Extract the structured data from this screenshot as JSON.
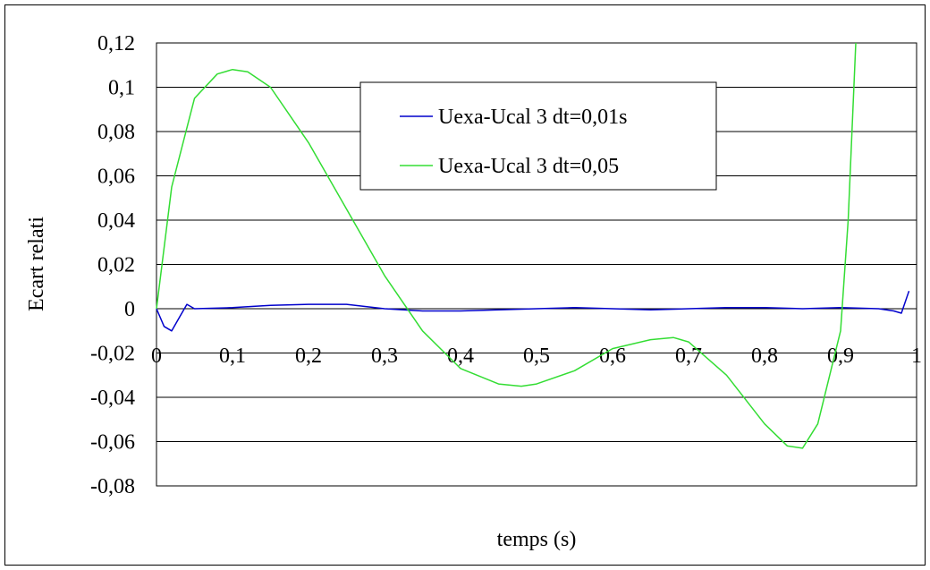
{
  "chart_data": {
    "type": "line",
    "title": "",
    "xlabel": "temps (s)",
    "ylabel": "Ecart relati",
    "xlim": [
      0,
      1
    ],
    "ylim": [
      -0.08,
      0.12
    ],
    "x_ticks": [
      0,
      0.1,
      0.2,
      0.3,
      0.4,
      0.5,
      0.6,
      0.7,
      0.8,
      0.9,
      1
    ],
    "x_tick_labels": [
      "0",
      "0,1",
      "0,2",
      "0,3",
      "0,4",
      "0,5",
      "0,6",
      "0,7",
      "0,8",
      "0,9",
      "1"
    ],
    "y_ticks": [
      0.12,
      0.1,
      0.08,
      0.06,
      0.04,
      0.02,
      0,
      -0.02,
      -0.04,
      -0.06,
      -0.08
    ],
    "y_tick_labels": [
      "0,12",
      "0,1",
      "0,08",
      "0,06",
      "0,04",
      "0,02",
      "0",
      "-0,02",
      "-0,04",
      "-0,06",
      "-0,08"
    ],
    "grid": "horizontal",
    "legend_position": "top-center",
    "series": [
      {
        "name": "Uexa-Ucal 3 dt=0,01s",
        "color": "#0000cc",
        "x": [
          0,
          0.01,
          0.02,
          0.03,
          0.04,
          0.05,
          0.1,
          0.15,
          0.2,
          0.25,
          0.3,
          0.35,
          0.4,
          0.45,
          0.5,
          0.55,
          0.6,
          0.65,
          0.7,
          0.75,
          0.8,
          0.85,
          0.9,
          0.95,
          0.97,
          0.98,
          0.99
        ],
        "values": [
          0,
          -0.008,
          -0.01,
          -0.004,
          0.002,
          0,
          0.0005,
          0.0015,
          0.002,
          0.002,
          0.0,
          -0.001,
          -0.001,
          -0.0005,
          0,
          0.0005,
          0,
          -0.0005,
          0,
          0.0005,
          0.0005,
          0,
          0.0005,
          0,
          -0.001,
          -0.002,
          0.008
        ]
      },
      {
        "name": "Uexa-Ucal 3 dt=0,05",
        "color": "#33dd33",
        "x": [
          0,
          0.02,
          0.05,
          0.08,
          0.1,
          0.12,
          0.15,
          0.2,
          0.25,
          0.3,
          0.35,
          0.4,
          0.45,
          0.48,
          0.5,
          0.55,
          0.6,
          0.65,
          0.68,
          0.7,
          0.75,
          0.8,
          0.83,
          0.85,
          0.87,
          0.9,
          0.91,
          0.92
        ],
        "values": [
          0,
          0.055,
          0.095,
          0.106,
          0.108,
          0.107,
          0.1,
          0.075,
          0.045,
          0.015,
          -0.01,
          -0.027,
          -0.034,
          -0.035,
          -0.034,
          -0.028,
          -0.018,
          -0.014,
          -0.013,
          -0.015,
          -0.03,
          -0.052,
          -0.062,
          -0.063,
          -0.052,
          -0.01,
          0.04,
          0.12
        ]
      }
    ]
  }
}
